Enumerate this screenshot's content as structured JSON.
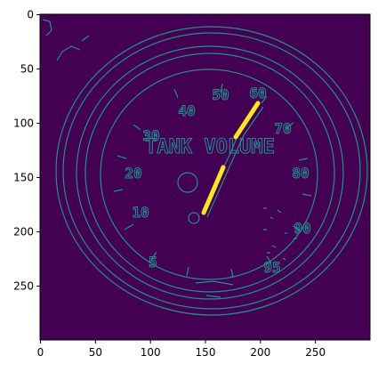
{
  "image_plot": {
    "colors": {
      "background": "#440154",
      "edge": "#21918c",
      "highlight": "#fde725",
      "frame": "#000000"
    },
    "x_ticks": [
      "0",
      "50",
      "100",
      "150",
      "200",
      "250"
    ],
    "y_ticks": [
      "0",
      "50",
      "100",
      "150",
      "200",
      "250"
    ],
    "xlim": [
      0,
      300
    ],
    "ylim": [
      300,
      0
    ],
    "dial_texts": [
      "TANK VOLUME",
      "10",
      "20",
      "30",
      "40",
      "50",
      "60",
      "70",
      "80",
      "90",
      "95",
      "5"
    ]
  }
}
